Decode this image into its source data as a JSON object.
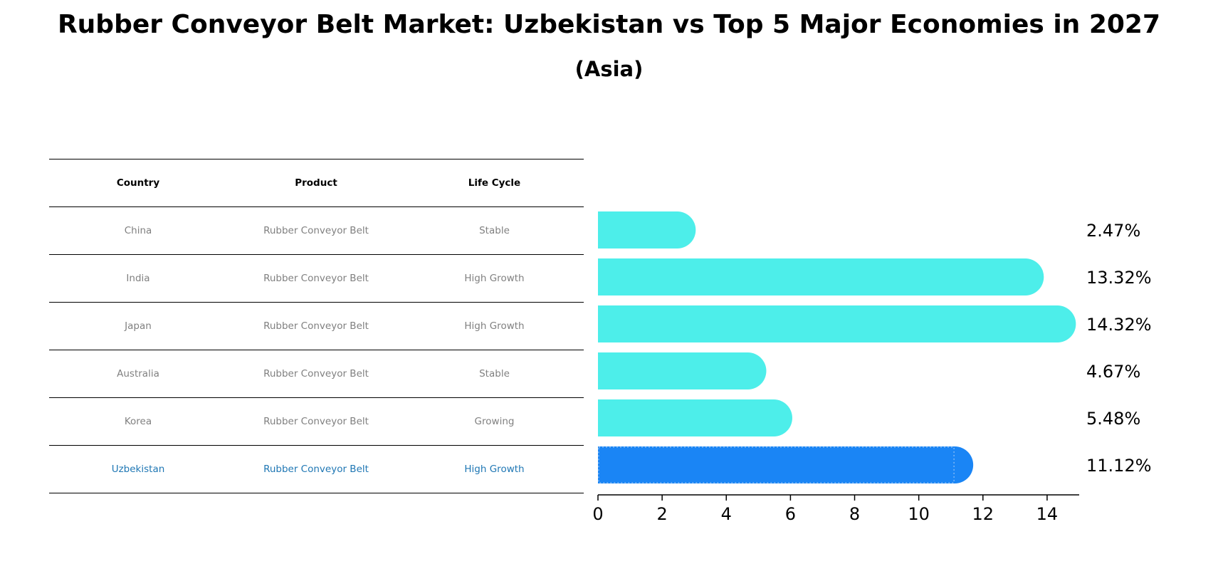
{
  "title": "Rubber Conveyor Belt Market: Uzbekistan vs Top 5 Major Economies in 2027",
  "subtitle": "(Asia)",
  "table": {
    "headers": [
      "Country",
      "Product",
      "Life Cycle"
    ],
    "rows": [
      {
        "country": "China",
        "product": "Rubber Conveyor Belt",
        "life_cycle": "Stable"
      },
      {
        "country": "India",
        "product": "Rubber Conveyor Belt",
        "life_cycle": "High Growth"
      },
      {
        "country": "Japan",
        "product": "Rubber Conveyor Belt",
        "life_cycle": "High Growth"
      },
      {
        "country": "Australia",
        "product": "Rubber Conveyor Belt",
        "life_cycle": "Stable"
      },
      {
        "country": "Korea",
        "product": "Rubber Conveyor Belt",
        "life_cycle": "Growing"
      },
      {
        "country": "Uzbekistan",
        "product": "Rubber Conveyor Belt",
        "life_cycle": "High Growth"
      }
    ]
  },
  "colors": {
    "bar": "#4deeea",
    "highlight_bar": "#1a85f5",
    "highlight_text": "#1f77b4",
    "muted_text": "#808080"
  },
  "chart_data": {
    "type": "bar",
    "orientation": "horizontal",
    "categories": [
      "China",
      "India",
      "Japan",
      "Australia",
      "Korea",
      "Uzbekistan"
    ],
    "values": [
      2.47,
      13.32,
      14.32,
      4.67,
      5.48,
      11.12
    ],
    "value_labels": [
      "2.47%",
      "13.32%",
      "14.32%",
      "4.67%",
      "5.48%",
      "11.12%"
    ],
    "highlight": "Uzbekistan",
    "xlim": [
      0,
      15
    ],
    "xticks": [
      0,
      2,
      4,
      6,
      8,
      10,
      12,
      14
    ],
    "xtick_labels": [
      "0",
      "2",
      "4",
      "6",
      "8",
      "10",
      "12",
      "14"
    ],
    "xlabel": "",
    "ylabel": ""
  }
}
